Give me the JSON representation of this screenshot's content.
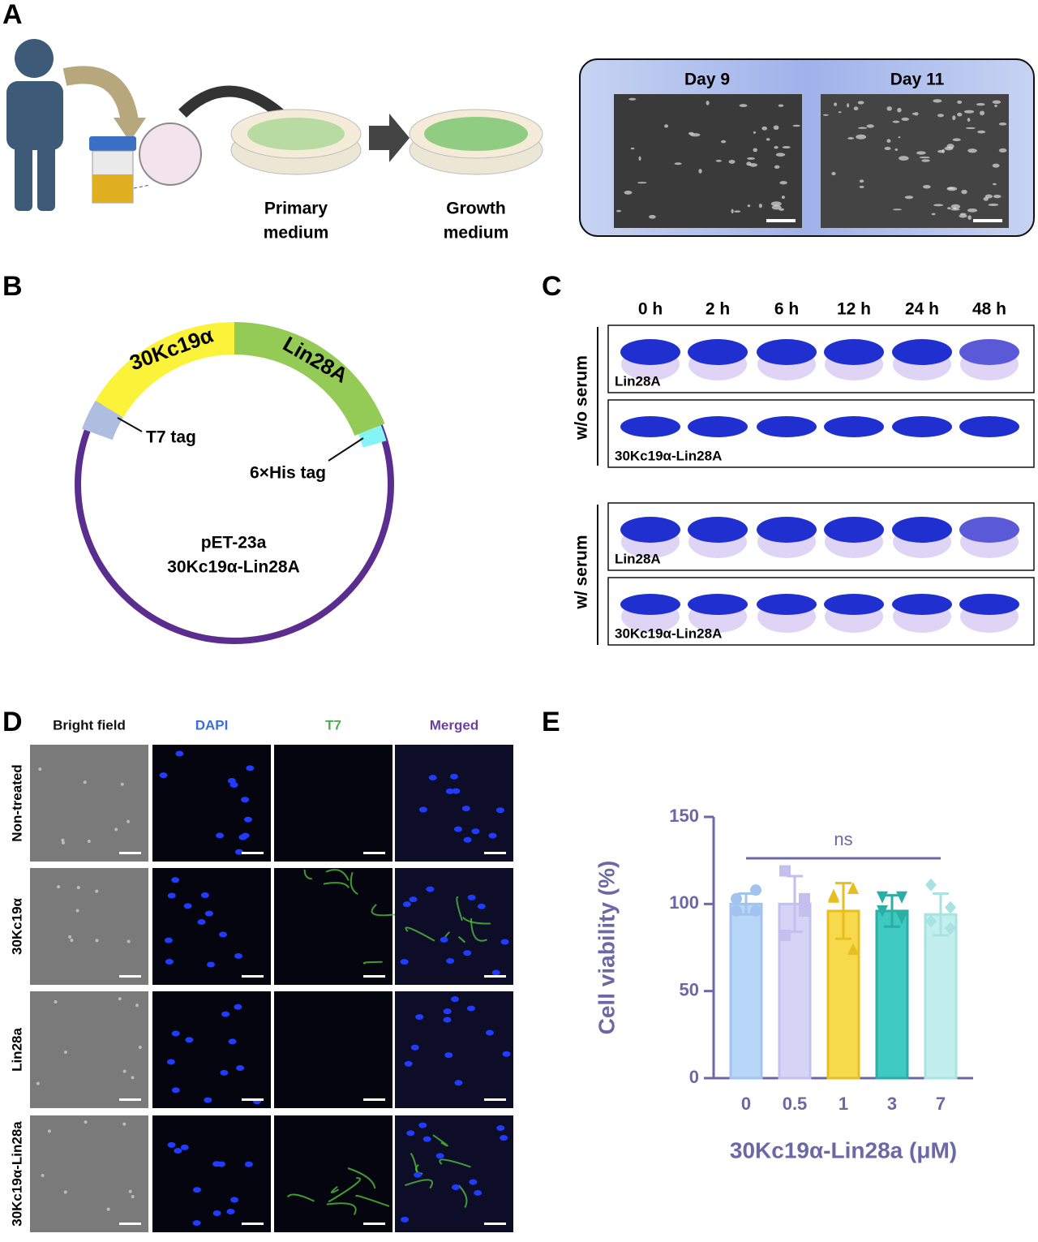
{
  "panel_labels": [
    "A",
    "B",
    "C",
    "D",
    "E"
  ],
  "panel_a": {
    "day_labels": [
      "Day 9",
      "Day 11"
    ],
    "dish_labels": [
      [
        "Primary",
        "medium"
      ],
      [
        "Growth",
        "medium"
      ]
    ]
  },
  "panel_b": {
    "segments": [
      "30Kc19α",
      "Lin28A"
    ],
    "tags": [
      "T7 tag",
      "6×His tag"
    ],
    "plasmid": [
      "pET-23a",
      "30Kc19α-Lin28A"
    ]
  },
  "panel_c": {
    "timepoints": [
      "0 h",
      "2 h",
      "6 h",
      "12 h",
      "24 h",
      "48 h"
    ],
    "conditions": [
      "w/o serum",
      "w/ serum"
    ],
    "proteins": [
      "Lin28A",
      "30Kc19α-Lin28A"
    ]
  },
  "panel_d": {
    "columns": [
      "Bright field",
      "DAPI",
      "T7",
      "Merged"
    ],
    "rows": [
      "Non-treated",
      "30Kc19α",
      "Lin28a",
      "30Kc19α-Lin28a"
    ]
  },
  "chart_data": {
    "type": "bar",
    "ylabel": "Cell viability (%)",
    "xlabel": "30Kc19α-Lin28a (μM)",
    "annotation": "ns",
    "categories": [
      "0",
      "0.5",
      "1",
      "3",
      "7"
    ],
    "values": [
      100,
      100,
      96,
      96,
      94
    ],
    "errors": [
      6,
      16,
      16,
      9,
      12
    ],
    "points": [
      [
        103,
        108,
        96,
        96
      ],
      [
        119,
        103,
        82,
        96
      ],
      [
        104,
        109,
        105,
        74
      ],
      [
        104,
        104,
        96,
        92
      ],
      [
        111,
        98,
        90,
        86
      ]
    ],
    "markers": [
      "circle",
      "square",
      "triangle-up",
      "triangle-down",
      "diamond"
    ],
    "colors": [
      "#b8d6f8",
      "#d6d4f6",
      "#f6da4c",
      "#3ec9c1",
      "#c2efee"
    ],
    "edge_colors": [
      "#a2c3ee",
      "#c3bfef",
      "#e8bf22",
      "#2aaea6",
      "#a8e2e1"
    ],
    "axis_color": "#6b68a6",
    "ylim": [
      0,
      150
    ],
    "yticks": [
      0,
      50,
      100,
      150
    ]
  }
}
